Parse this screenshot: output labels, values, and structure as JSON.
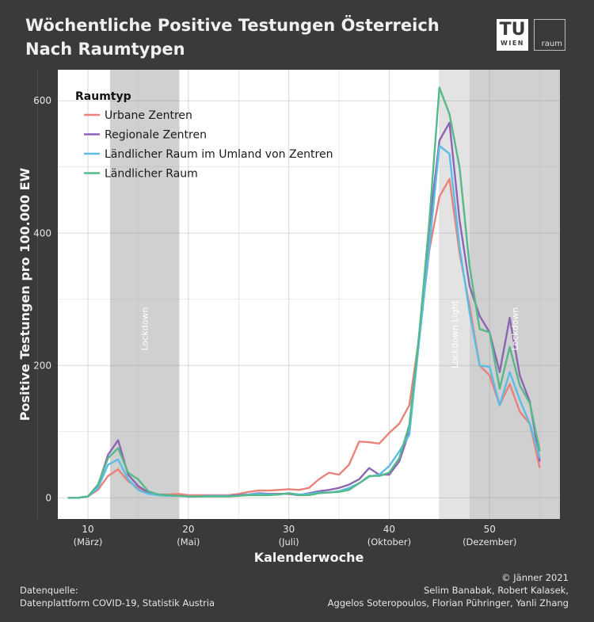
{
  "header": {
    "title_line1": "Wöchentliche Positive Testungen Österreich",
    "title_line2": "Nach Raumtypen",
    "logo_tu_text": "TU",
    "logo_wien_text": "WIEN",
    "logo_raum_text": "raum"
  },
  "footer": {
    "source_label": "Datenquelle:",
    "source_text": "Datenplattform COVID-19, Statistik Austria",
    "copyright": "© Jänner 2021",
    "authors_line1": "Selim Banabak, Robert Kalasek,",
    "authors_line2": "Aggelos Soteropoulos, Florian Pühringer, Yanli Zhang"
  },
  "chart_data": {
    "type": "line",
    "xlabel": "Kalenderwoche",
    "ylabel": "Positive Testungen pro 100.000 EW",
    "xlim": [
      7,
      57
    ],
    "ylim": [
      -32,
      647
    ],
    "x_ticks": [
      10,
      20,
      30,
      40,
      50
    ],
    "x_tick_sublabels": [
      "(März)",
      "(Mai)",
      "(Juli)",
      "(Oktober)",
      "(Dezember)"
    ],
    "y_ticks": [
      0,
      200,
      400,
      600
    ],
    "grid": true,
    "legend_title": "Raumtyp",
    "legend_position": "top-left",
    "shaded_periods": [
      {
        "label": "Lockdown",
        "from": 12.2,
        "to": 19.1
      },
      {
        "label": "Lockdown Light",
        "from": 45.0,
        "to": 48.0
      },
      {
        "label": "Lockdown",
        "from": 48.0,
        "to": 57.0
      }
    ],
    "x": [
      8,
      9,
      10,
      11,
      12,
      13,
      14,
      15,
      16,
      17,
      18,
      19,
      20,
      21,
      22,
      23,
      24,
      25,
      26,
      27,
      28,
      29,
      30,
      31,
      32,
      33,
      34,
      35,
      36,
      37,
      38,
      39,
      40,
      41,
      42,
      43,
      44,
      45,
      46,
      47,
      48,
      49,
      50,
      51,
      52,
      53,
      54,
      55
    ],
    "series": [
      {
        "name": "Urbane Zentren",
        "color": "#e8827a",
        "values": [
          0,
          0,
          2,
          12,
          33,
          43,
          25,
          15,
          8,
          5,
          5,
          6,
          4,
          4,
          4,
          4,
          4,
          6,
          9,
          11,
          11,
          12,
          13,
          12,
          15,
          28,
          38,
          35,
          50,
          85,
          84,
          82,
          98,
          112,
          140,
          245,
          375,
          455,
          482,
          370,
          290,
          200,
          185,
          140,
          172,
          130,
          112,
          45
        ]
      },
      {
        "name": "Regionale Zentren",
        "color": "#8c65b3",
        "values": [
          0,
          0,
          2,
          18,
          65,
          87,
          35,
          18,
          8,
          5,
          4,
          3,
          2,
          2,
          3,
          3,
          3,
          4,
          5,
          7,
          6,
          6,
          6,
          4,
          7,
          10,
          12,
          15,
          20,
          28,
          45,
          35,
          35,
          55,
          100,
          250,
          410,
          540,
          567,
          420,
          320,
          275,
          250,
          190,
          272,
          185,
          145,
          55
        ]
      },
      {
        "name": "Ländlicher Raum im Umland von Zentren",
        "color": "#5bbde6",
        "values": [
          0,
          0,
          2,
          15,
          50,
          58,
          28,
          12,
          6,
          4,
          3,
          3,
          2,
          2,
          3,
          3,
          3,
          3,
          5,
          6,
          5,
          5,
          7,
          5,
          6,
          8,
          8,
          10,
          15,
          22,
          32,
          35,
          48,
          70,
          95,
          240,
          380,
          532,
          520,
          380,
          280,
          200,
          198,
          140,
          190,
          148,
          112,
          60
        ]
      },
      {
        "name": "Ländlicher Raum",
        "color": "#55b98a",
        "values": [
          0,
          0,
          2,
          20,
          60,
          75,
          38,
          28,
          10,
          5,
          4,
          3,
          2,
          2,
          2,
          2,
          2,
          3,
          4,
          4,
          4,
          5,
          7,
          4,
          4,
          7,
          8,
          9,
          12,
          22,
          33,
          33,
          38,
          60,
          110,
          250,
          420,
          620,
          580,
          500,
          350,
          255,
          250,
          165,
          228,
          170,
          143,
          70
        ]
      }
    ]
  }
}
